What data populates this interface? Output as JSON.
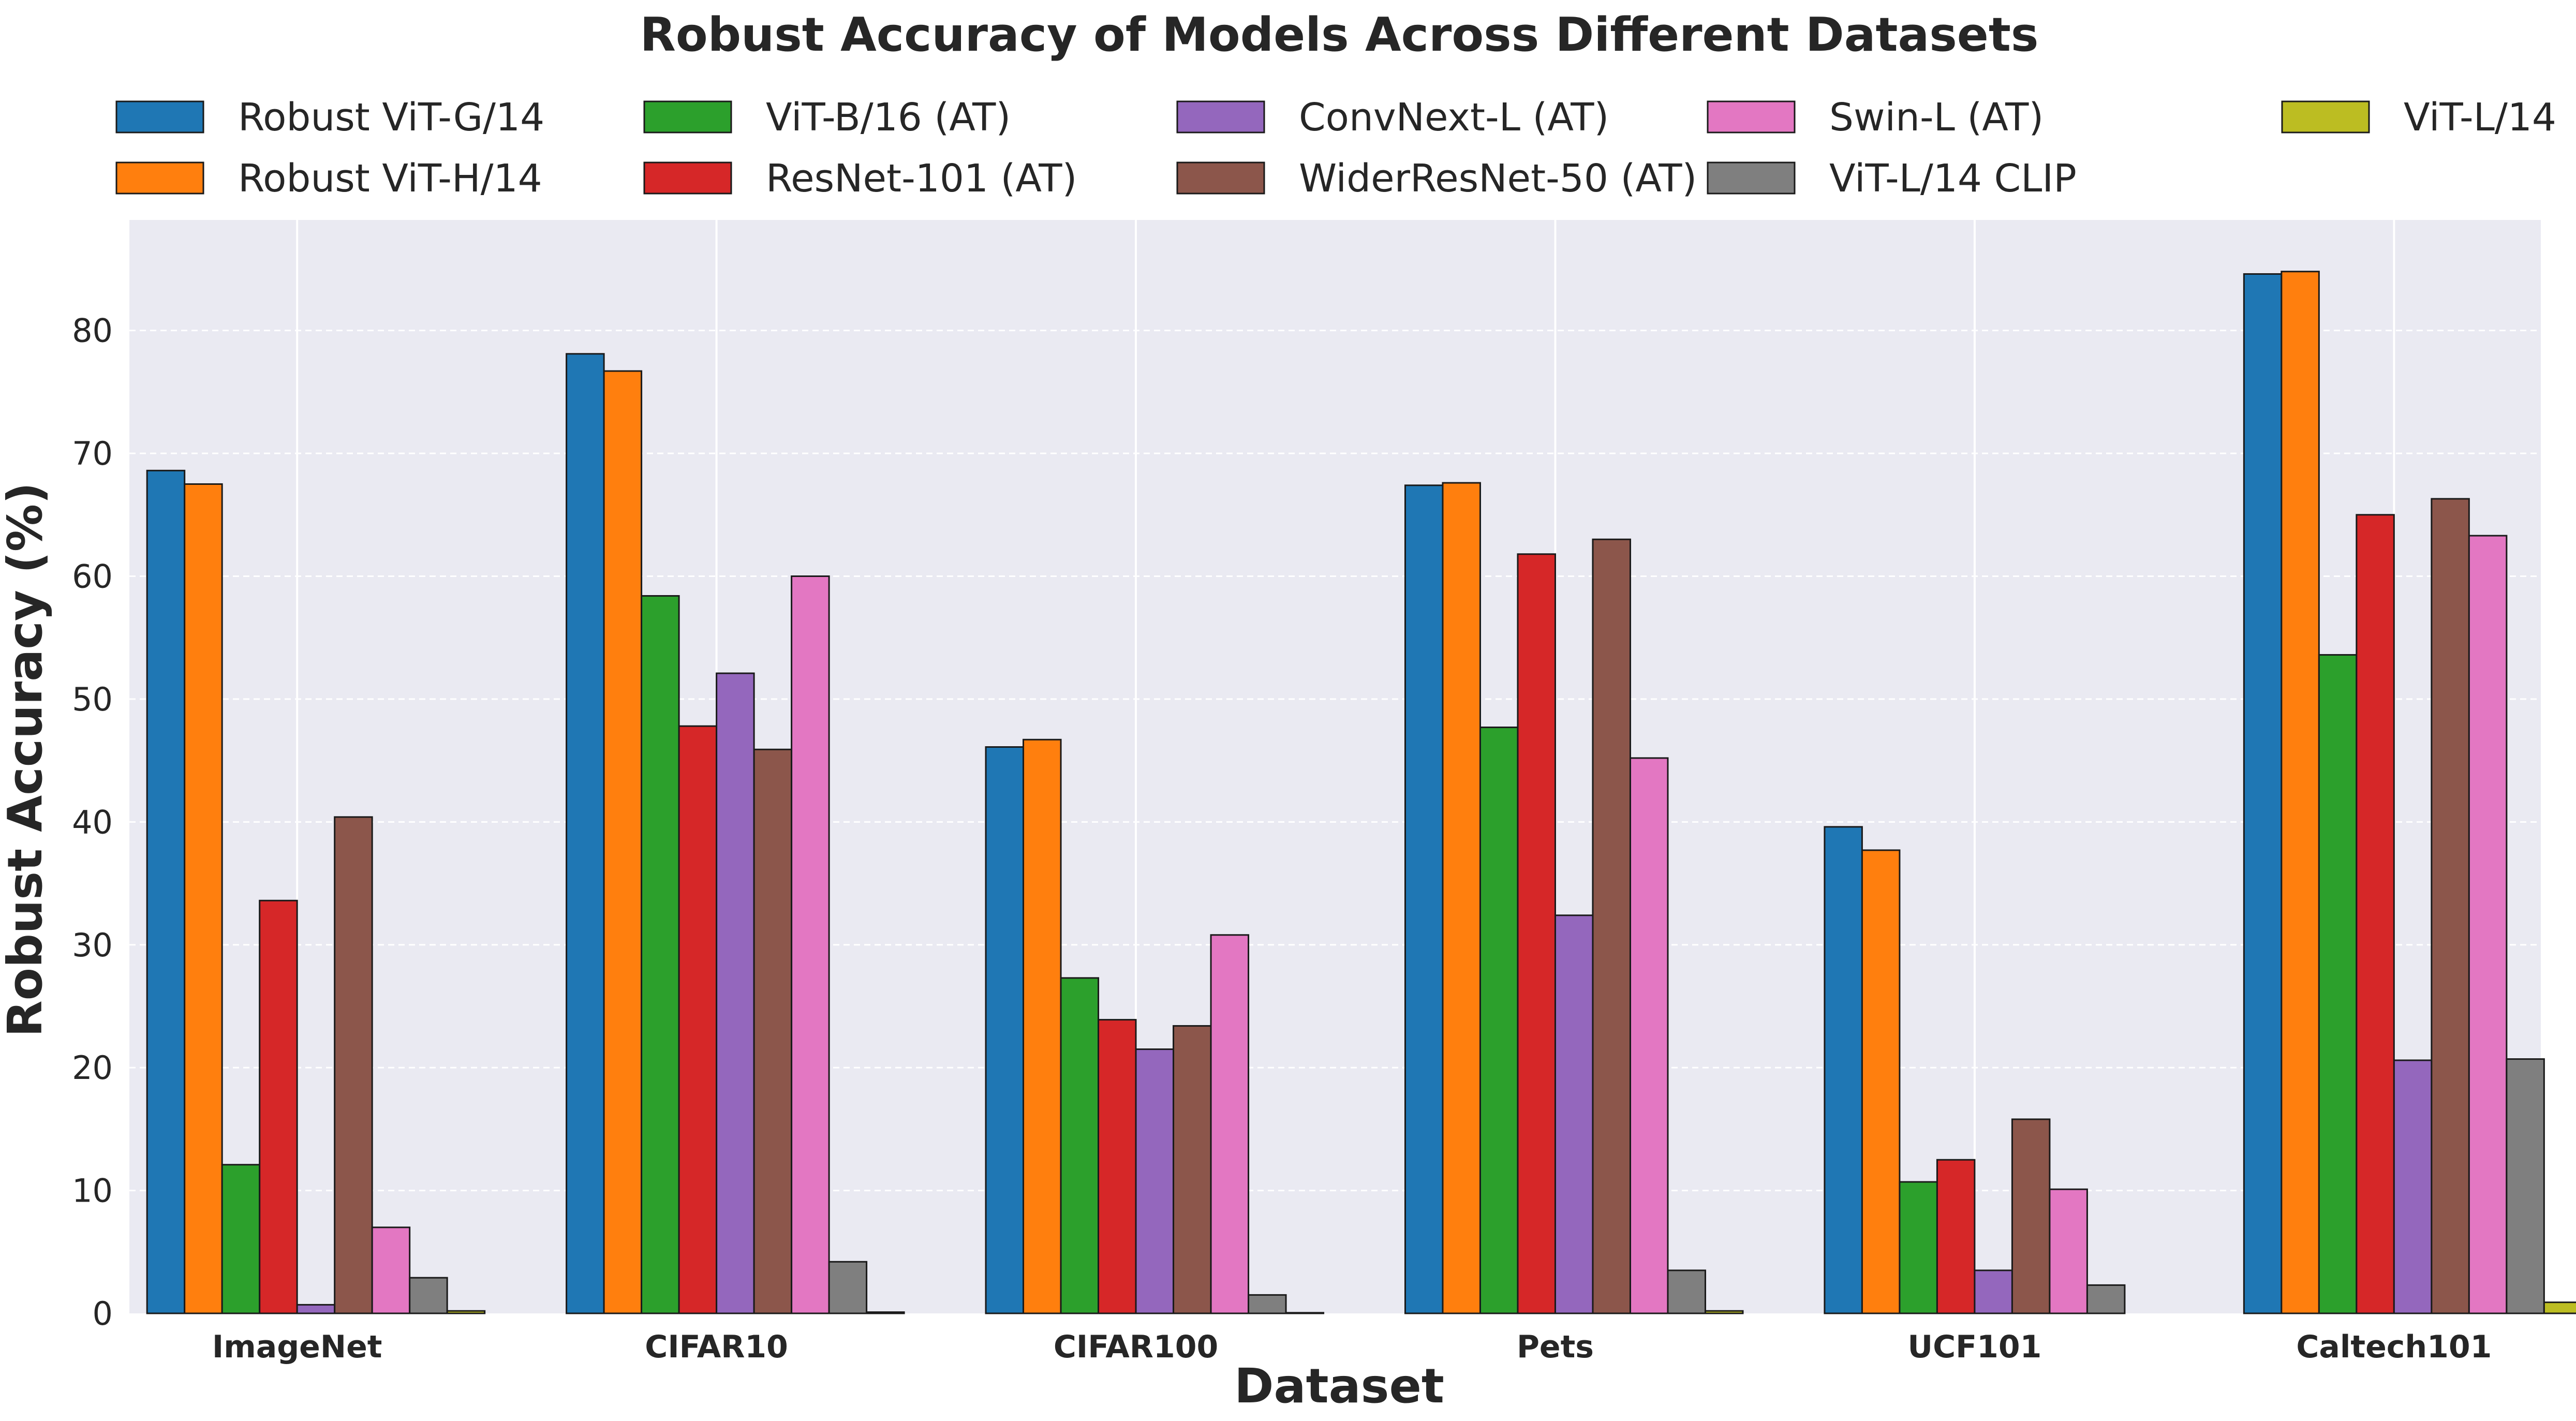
{
  "chart_data": {
    "type": "bar",
    "title": "Robust Accuracy of Models Across Different Datasets",
    "xlabel": "Dataset",
    "ylabel": "Robust Accuracy (%)",
    "ylim": [
      0,
      89
    ],
    "yticks": [
      0,
      10,
      20,
      30,
      40,
      50,
      60,
      70,
      80
    ],
    "grid": true,
    "legend_position": "top",
    "categories": [
      "ImageNet",
      "CIFAR10",
      "CIFAR100",
      "Pets",
      "UCF101",
      "Caltech101"
    ],
    "series": [
      {
        "name": "Robust ViT-G/14",
        "color": "#1f77b4",
        "values": [
          68.6,
          78.1,
          46.1,
          67.4,
          39.6,
          84.6
        ]
      },
      {
        "name": "Robust ViT-H/14",
        "color": "#ff7f0e",
        "values": [
          67.5,
          76.7,
          46.7,
          67.6,
          37.7,
          84.8
        ]
      },
      {
        "name": "ViT-B/16 (AT)",
        "color": "#2ca02c",
        "values": [
          12.1,
          58.4,
          27.3,
          47.7,
          10.7,
          53.6
        ]
      },
      {
        "name": "ResNet-101 (AT)",
        "color": "#d62728",
        "values": [
          33.6,
          47.8,
          23.9,
          61.8,
          12.5,
          65.0
        ]
      },
      {
        "name": "ConvNext-L (AT)",
        "color": "#9467bd",
        "values": [
          0.7,
          52.1,
          21.5,
          32.4,
          3.5,
          20.6
        ]
      },
      {
        "name": "WiderResNet-50 (AT)",
        "color": "#8c564b",
        "values": [
          40.4,
          45.9,
          23.4,
          63.0,
          15.8,
          66.3
        ]
      },
      {
        "name": "Swin-L (AT)",
        "color": "#e377c2",
        "values": [
          7.0,
          60.0,
          30.8,
          45.2,
          10.1,
          63.3
        ]
      },
      {
        "name": "ViT-L/14 CLIP",
        "color": "#7f7f7f",
        "values": [
          2.9,
          4.2,
          1.5,
          3.5,
          2.3,
          20.7
        ]
      },
      {
        "name": "ViT-L/14",
        "color": "#bcbd22",
        "values": [
          0.2,
          0.1,
          0.05,
          0.2,
          0.0,
          0.9
        ]
      }
    ]
  }
}
